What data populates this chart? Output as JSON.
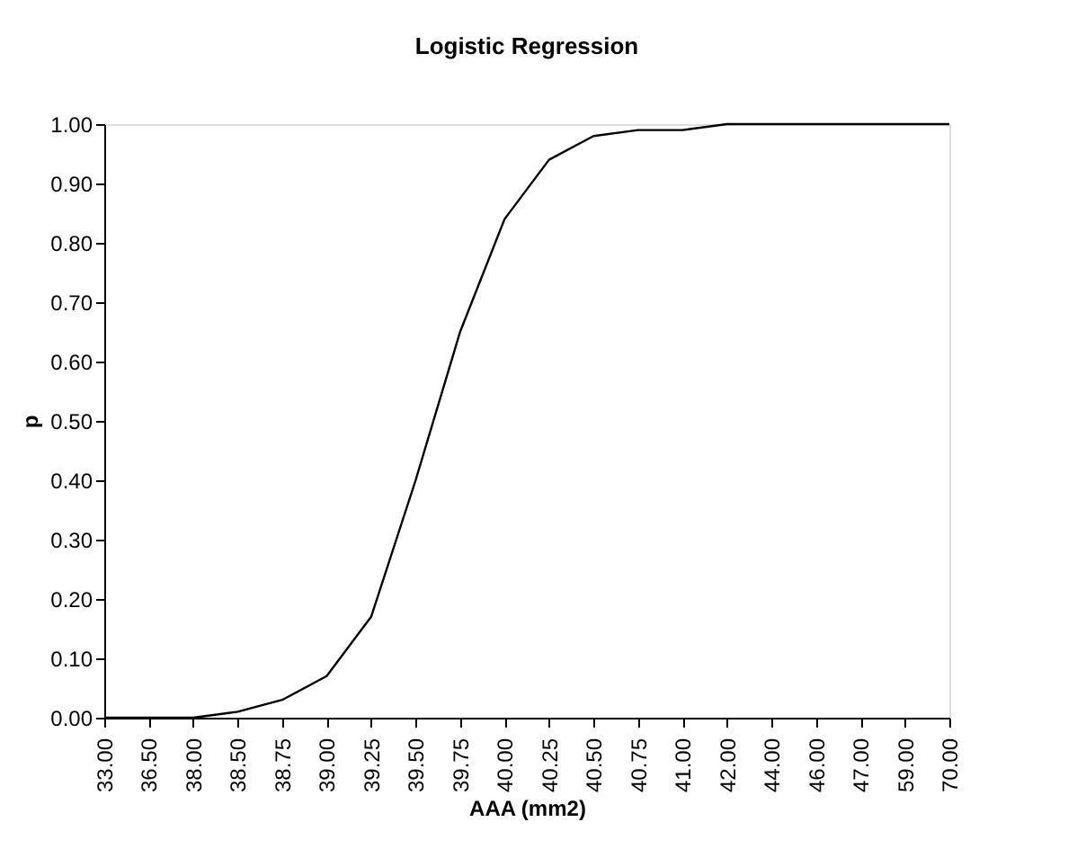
{
  "chart_data": {
    "type": "line",
    "title": "Logistic Regression",
    "xlabel": "AAA (mm2)",
    "ylabel": "p",
    "categories": [
      "33.00",
      "36.50",
      "38.00",
      "38.50",
      "38.75",
      "39.00",
      "39.25",
      "39.50",
      "39.75",
      "40.00",
      "40.25",
      "40.50",
      "40.75",
      "41.00",
      "42.00",
      "44.00",
      "46.00",
      "47.00",
      "59.00",
      "70.00"
    ],
    "series": [
      {
        "color": "#000000",
        "values": [
          0,
          0,
          0,
          0.01,
          0.03,
          0.07,
          0.17,
          0.4,
          0.65,
          0.84,
          0.94,
          0.98,
          0.99,
          0.99,
          1.0,
          1.0,
          1.0,
          1.0,
          1.0,
          1.0
        ]
      }
    ],
    "ylim": [
      0,
      1
    ],
    "yticks": [
      {
        "value": 0,
        "label": "0.00"
      },
      {
        "value": 0.1,
        "label": "0.10"
      },
      {
        "value": 0.2,
        "label": "0.20"
      },
      {
        "value": 0.3,
        "label": "0.30"
      },
      {
        "value": 0.4,
        "label": "0.40"
      },
      {
        "value": 0.5,
        "label": "0.50"
      },
      {
        "value": 0.6,
        "label": "0.60"
      },
      {
        "value": 0.7,
        "label": "0.70"
      },
      {
        "value": 0.8,
        "label": "0.80"
      },
      {
        "value": 0.9,
        "label": "0.90"
      },
      {
        "value": 1.0,
        "label": "1.00"
      }
    ],
    "grid": false,
    "legend": false,
    "marker": "none",
    "line_style": "solid"
  }
}
